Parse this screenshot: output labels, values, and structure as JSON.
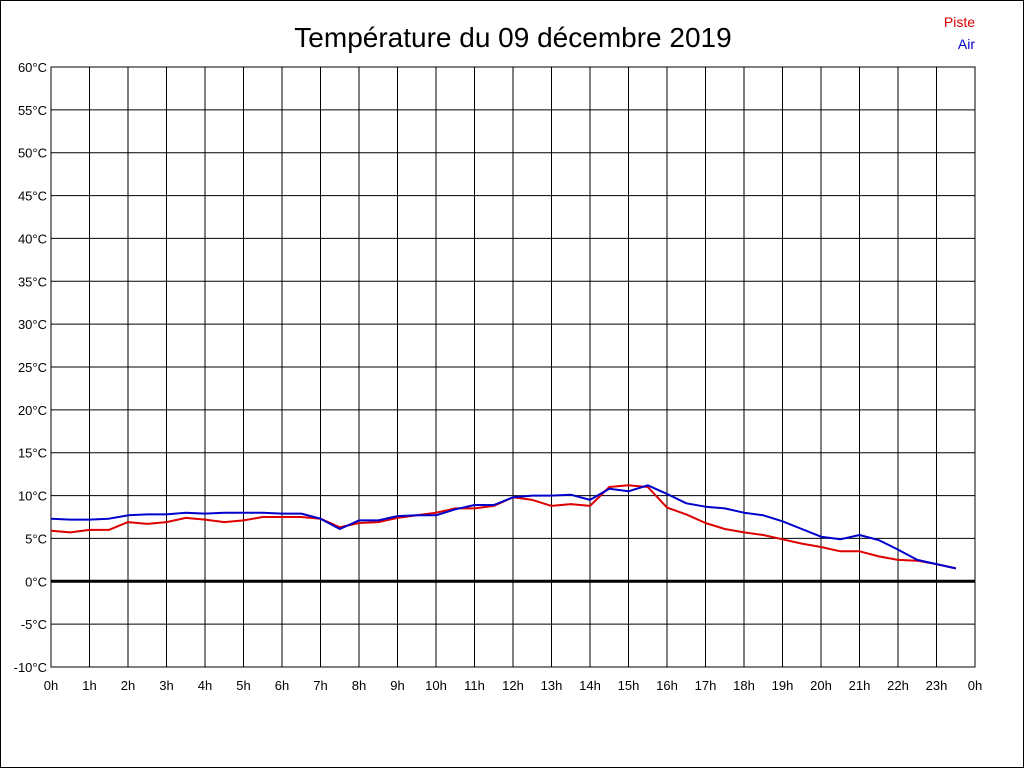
{
  "chart_data": {
    "type": "line",
    "title": "Température du 09 décembre 2019",
    "xlabel": "",
    "ylabel": "",
    "x_ticks": [
      "0h",
      "1h",
      "2h",
      "3h",
      "4h",
      "5h",
      "6h",
      "7h",
      "8h",
      "9h",
      "10h",
      "11h",
      "12h",
      "13h",
      "14h",
      "15h",
      "16h",
      "17h",
      "18h",
      "19h",
      "20h",
      "21h",
      "22h",
      "23h",
      "0h"
    ],
    "xlim": [
      0,
      24
    ],
    "y_ticks": [
      "60°C",
      "55°C",
      "50°C",
      "45°C",
      "40°C",
      "35°C",
      "30°C",
      "25°C",
      "20°C",
      "15°C",
      "10°C",
      "5°C",
      "0°C",
      "-5°C",
      "-10°C"
    ],
    "ylim": [
      -10,
      60
    ],
    "y_step": 5,
    "grid": true,
    "zero_line": true,
    "legend_position": "top-right",
    "series": [
      {
        "name": "Piste",
        "color": "#dd0000",
        "x": [
          0,
          0.5,
          1,
          1.5,
          2,
          2.5,
          3,
          3.5,
          4,
          4.5,
          5,
          5.5,
          6,
          6.5,
          7,
          7.5,
          8,
          8.5,
          9,
          9.5,
          10,
          10.5,
          11,
          11.5,
          12,
          12.5,
          13,
          13.5,
          14,
          14.5,
          15,
          15.5,
          16,
          16.5,
          17,
          17.5,
          18,
          18.5,
          19,
          19.5,
          20,
          20.5,
          21,
          21.5,
          22,
          22.5,
          23,
          23.5
        ],
        "y": [
          5.9,
          5.7,
          6.0,
          6.0,
          6.9,
          6.7,
          6.9,
          7.4,
          7.2,
          6.9,
          7.1,
          7.5,
          7.5,
          7.5,
          7.3,
          6.3,
          6.8,
          6.9,
          7.4,
          7.7,
          8.0,
          8.5,
          8.5,
          8.8,
          9.8,
          9.5,
          8.8,
          9.0,
          8.8,
          11.0,
          11.2,
          11.0,
          8.6,
          7.8,
          6.8,
          6.1,
          5.7,
          5.4,
          4.9,
          4.4,
          4.0,
          3.5,
          3.5,
          2.9,
          2.5,
          2.4,
          2.0,
          1.5
        ]
      },
      {
        "name": "Air",
        "color": "#0000cc",
        "x": [
          0,
          0.5,
          1,
          1.5,
          2,
          2.5,
          3,
          3.5,
          4,
          4.5,
          5,
          5.5,
          6,
          6.5,
          7,
          7.5,
          8,
          8.5,
          9,
          9.5,
          10,
          10.5,
          11,
          11.5,
          12,
          12.5,
          13,
          13.5,
          14,
          14.5,
          15,
          15.5,
          16,
          16.5,
          17,
          17.5,
          18,
          18.5,
          19,
          19.5,
          20,
          20.5,
          21,
          21.5,
          22,
          22.5,
          23,
          23.5
        ],
        "y": [
          7.3,
          7.2,
          7.2,
          7.3,
          7.7,
          7.8,
          7.8,
          8.0,
          7.9,
          8.0,
          8.0,
          8.0,
          7.9,
          7.9,
          7.3,
          6.1,
          7.1,
          7.1,
          7.6,
          7.7,
          7.7,
          8.4,
          8.9,
          8.9,
          9.8,
          10.0,
          10.0,
          10.1,
          9.5,
          10.8,
          10.5,
          11.2,
          10.2,
          9.1,
          8.7,
          8.5,
          8.0,
          7.7,
          7.0,
          6.1,
          5.2,
          4.9,
          5.4,
          4.8,
          3.7,
          2.5,
          2.0,
          1.5
        ]
      }
    ]
  }
}
